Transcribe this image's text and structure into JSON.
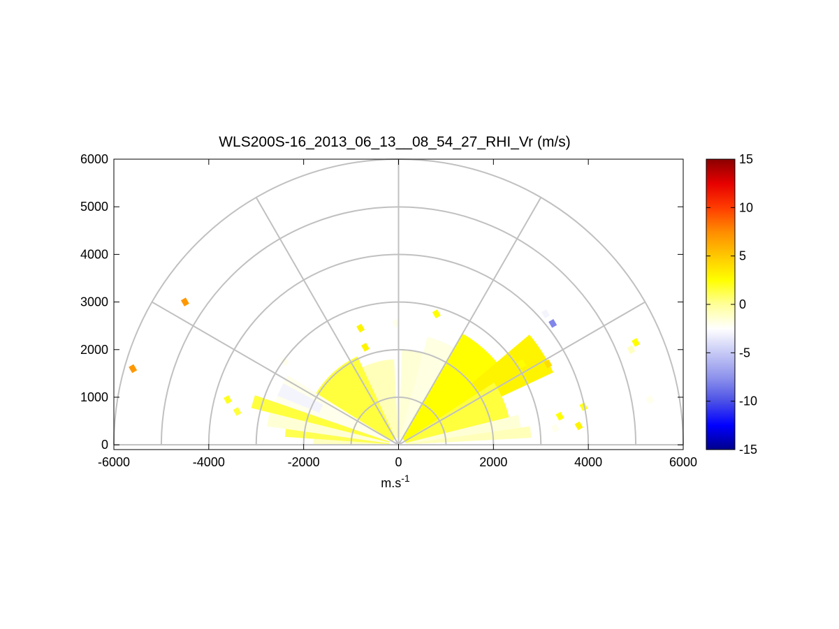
{
  "chart_data": {
    "type": "heatmap",
    "title": "WLS200S-16_2013_06_13__08_54_27_RHI_Vr (m/s)",
    "xlabel": "m.s",
    "xlabel_superscript": "-1",
    "ylabel": "",
    "xlim": [
      -6000,
      6000
    ],
    "ylim": [
      -100,
      6000
    ],
    "x_ticks": [
      "-6000",
      "-4000",
      "-2000",
      "0",
      "2000",
      "4000",
      "6000"
    ],
    "y_ticks": [
      "0",
      "1000",
      "2000",
      "3000",
      "4000",
      "5000",
      "6000"
    ],
    "polar_grid": {
      "ring_ranges": [
        1000,
        2000,
        3000,
        4000,
        5000,
        6000
      ],
      "spoke_angles_deg": [
        0,
        30,
        60,
        90,
        120,
        150,
        180
      ]
    },
    "colorbar": {
      "min": -15,
      "max": 15,
      "ticks": [
        "15",
        "10",
        "5",
        "0",
        "-5",
        "-10",
        "-15"
      ],
      "colors": [
        "#00008b",
        "#0000ff",
        "#4b50e6",
        "#8f94ec",
        "#c6c9f5",
        "#ffffff",
        "#ffff99",
        "#ffff00",
        "#ffc800",
        "#ff8c00",
        "#ff3c00",
        "#e60000",
        "#8b0000"
      ]
    },
    "sectors": [
      {
        "az_start": 148,
        "az_end": 161,
        "r_start": 150,
        "r_end": 2750,
        "vr": -2.0
      },
      {
        "az_start": 152,
        "az_end": 158,
        "r_start": 1800,
        "r_end": 2750,
        "vr": -3.0
      },
      {
        "az_start": 161,
        "az_end": 166,
        "r_start": 200,
        "r_end": 3200,
        "vr": 1.5
      },
      {
        "az_start": 166,
        "az_end": 172,
        "r_start": 200,
        "r_end": 2800,
        "vr": -1.5
      },
      {
        "az_start": 172,
        "az_end": 176,
        "r_start": 200,
        "r_end": 2400,
        "vr": 1.2
      },
      {
        "az_start": 176,
        "az_end": 179.5,
        "r_start": 150,
        "r_end": 1800,
        "vr": -1.0
      },
      {
        "az_start": 115,
        "az_end": 148,
        "r_start": 150,
        "r_end": 2050,
        "vr": 1.5
      },
      {
        "az_start": 93,
        "az_end": 115,
        "r_start": 150,
        "r_end": 1800,
        "vr": -0.8
      },
      {
        "az_start": 60,
        "az_end": 75,
        "r_start": 150,
        "r_end": 2350,
        "vr": -1.8
      },
      {
        "az_start": 75,
        "az_end": 88,
        "r_start": 150,
        "r_end": 2000,
        "vr": -1.5
      },
      {
        "az_start": 33,
        "az_end": 60,
        "r_start": 150,
        "r_end": 2700,
        "vr": 2.5
      },
      {
        "az_start": 25,
        "az_end": 40,
        "r_start": 2000,
        "r_end": 3600,
        "vr": 3.0
      },
      {
        "az_start": 14,
        "az_end": 33,
        "r_start": 150,
        "r_end": 2400,
        "vr": 1.5
      },
      {
        "az_start": 8,
        "az_end": 14,
        "r_start": 150,
        "r_end": 2600,
        "vr": -1.5
      },
      {
        "az_start": 3,
        "az_end": 8,
        "r_start": 150,
        "r_end": 2800,
        "vr": -0.8
      }
    ],
    "scatter_cells": [
      {
        "x": -5600,
        "y": 1600,
        "vr": 7.0
      },
      {
        "x": -4500,
        "y": 3000,
        "vr": 7.0
      },
      {
        "x": 3250,
        "y": 2550,
        "vr": -8.0
      },
      {
        "x": 3100,
        "y": 2750,
        "vr": -3.0
      },
      {
        "x": 5000,
        "y": 2150,
        "vr": 2.5
      },
      {
        "x": 4900,
        "y": 2000,
        "vr": -1.0
      },
      {
        "x": 5250,
        "y": 1150,
        "vr": -2.5
      },
      {
        "x": 5300,
        "y": 950,
        "vr": -2.0
      },
      {
        "x": -50,
        "y": 2550,
        "vr": -2.0
      },
      {
        "x": 800,
        "y": 2750,
        "vr": 2.5
      },
      {
        "x": -800,
        "y": 2450,
        "vr": 3.0
      },
      {
        "x": -700,
        "y": 2050,
        "vr": 3.0
      },
      {
        "x": -3600,
        "y": 950,
        "vr": 2.0
      },
      {
        "x": -3400,
        "y": 700,
        "vr": 1.5
      },
      {
        "x": -2500,
        "y": 1850,
        "vr": -2.5
      },
      {
        "x": -2400,
        "y": 1750,
        "vr": -2.0
      },
      {
        "x": 3900,
        "y": 800,
        "vr": 2.0
      },
      {
        "x": 3800,
        "y": 400,
        "vr": 3.0
      },
      {
        "x": 3300,
        "y": 350,
        "vr": -2.0
      },
      {
        "x": 3400,
        "y": 600,
        "vr": 2.5
      },
      {
        "x": 3150,
        "y": 1700,
        "vr": 4.0
      },
      {
        "x": 2300,
        "y": 1750,
        "vr": 3.0
      },
      {
        "x": 2600,
        "y": 1700,
        "vr": 2.5
      }
    ]
  }
}
